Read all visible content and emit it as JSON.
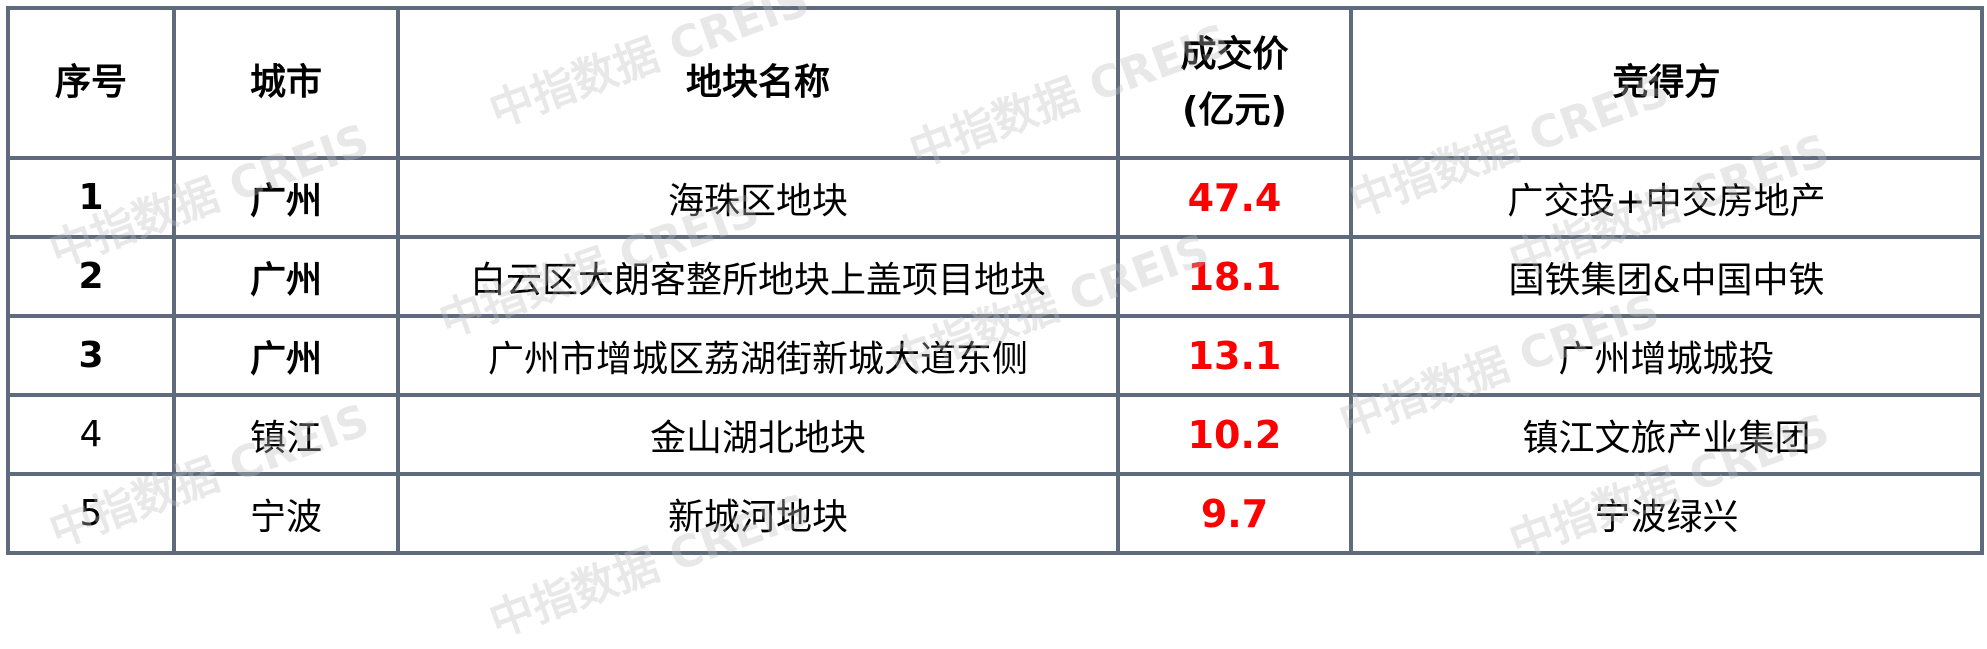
{
  "headers": [
    "序号",
    "城市",
    "地块名称",
    "成交价",
    "(亿元)",
    "竞得方"
  ],
  "rows": [
    {
      "no": "1",
      "city": "广州",
      "parcel": "海珠区地块",
      "price": "47.4",
      "winner": "广交投+中交房地产",
      "bold": true
    },
    {
      "no": "2",
      "city": "广州",
      "parcel": "白云区大朗客整所地块上盖项目地块",
      "price": "18.1",
      "winner": "国铁集团&中国中铁",
      "bold": true
    },
    {
      "no": "3",
      "city": "广州",
      "parcel": "广州市增城区荔湖街新城大道东侧",
      "price": "13.1",
      "winner": "广州增城城投",
      "bold": true
    },
    {
      "no": "4",
      "city": "镇江",
      "parcel": "金山湖北地块",
      "price": "10.2",
      "winner": "镇江文旅产业集团",
      "bold": false
    },
    {
      "no": "5",
      "city": "宁波",
      "parcel": "新城河地块",
      "price": "9.7",
      "winner": "宁波绿兴",
      "bold": false
    }
  ],
  "watermark": "中指数据 CREIS",
  "colors": {
    "border": "#5f6b7c",
    "price": "#ff0000"
  }
}
